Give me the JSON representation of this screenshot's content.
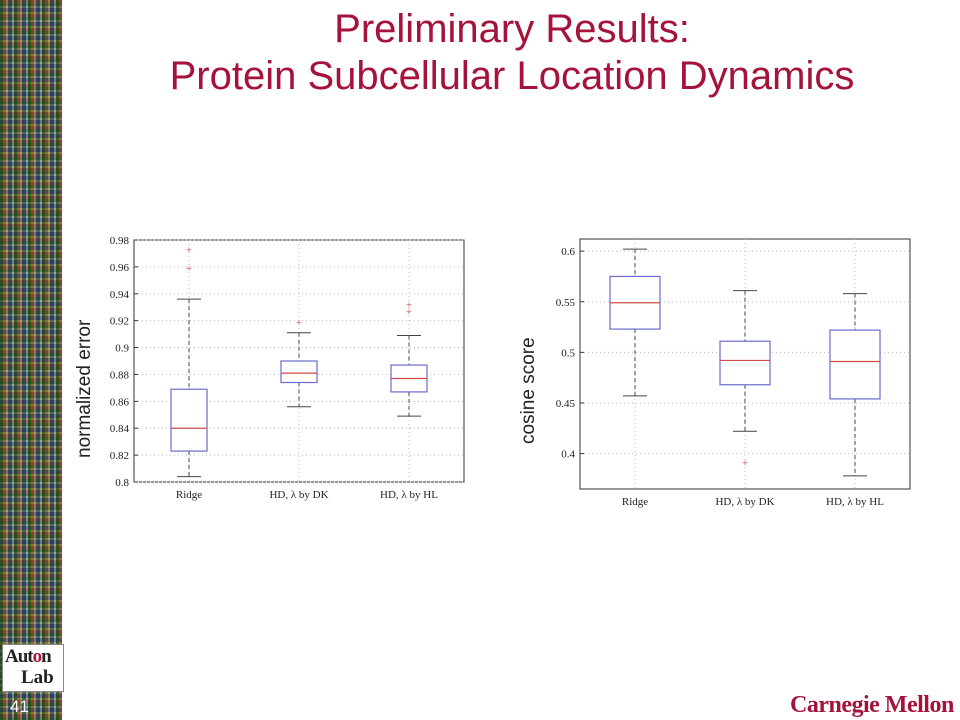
{
  "slide": {
    "title_line1": "Preliminary Results:",
    "title_line2": "Protein Subcellular Location Dynamics",
    "page_number": "41",
    "logo_text_top": "Aut",
    "logo_text_o": "o",
    "logo_text_n": "n",
    "logo_text_bottom": "Lab",
    "footer_brand": "Carnegie Mellon"
  },
  "colors": {
    "title": "#a5123a",
    "box": "#6b6bd0",
    "median": "#d04a4a",
    "outlier": "#d04a4a",
    "whisker": "#444444"
  },
  "chart_data": [
    {
      "type": "box",
      "ylabel": "normalized error",
      "categories": [
        "Ridge",
        "HD, λ by DK",
        "HD, λ by HL"
      ],
      "ylim": [
        0.8,
        0.98
      ],
      "yticks": [
        0.8,
        0.82,
        0.84,
        0.86,
        0.88,
        0.9,
        0.92,
        0.94,
        0.96,
        0.98
      ],
      "ytick_labels": [
        "0.8",
        "0.82",
        "0.84",
        "0.86",
        "0.88",
        "0.9",
        "0.92",
        "0.94",
        "0.96",
        "0.98"
      ],
      "grid": true,
      "boxes": [
        {
          "whisker_low": 0.804,
          "q1": 0.823,
          "median": 0.84,
          "q3": 0.869,
          "whisker_high": 0.936,
          "outliers": [
            0.959,
            0.973
          ]
        },
        {
          "whisker_low": 0.856,
          "q1": 0.874,
          "median": 0.881,
          "q3": 0.89,
          "whisker_high": 0.911,
          "outliers": [
            0.919
          ]
        },
        {
          "whisker_low": 0.849,
          "q1": 0.867,
          "median": 0.877,
          "q3": 0.887,
          "whisker_high": 0.909,
          "outliers": [
            0.927,
            0.932
          ]
        }
      ]
    },
    {
      "type": "box",
      "ylabel": "cosine score",
      "categories": [
        "Ridge",
        "HD, λ by DK",
        "HD, λ by HL"
      ],
      "ylim": [
        0.365,
        0.612
      ],
      "yticks": [
        0.4,
        0.45,
        0.5,
        0.55,
        0.6
      ],
      "ytick_labels": [
        "0.4",
        "0.45",
        "0.5",
        "0.55",
        "0.6"
      ],
      "grid": true,
      "boxes": [
        {
          "whisker_low": 0.457,
          "q1": 0.523,
          "median": 0.549,
          "q3": 0.575,
          "whisker_high": 0.602,
          "outliers": []
        },
        {
          "whisker_low": 0.422,
          "q1": 0.468,
          "median": 0.492,
          "q3": 0.511,
          "whisker_high": 0.561,
          "outliers": [
            0.391
          ]
        },
        {
          "whisker_low": 0.378,
          "q1": 0.454,
          "median": 0.491,
          "q3": 0.522,
          "whisker_high": 0.558,
          "outliers": []
        }
      ]
    }
  ]
}
